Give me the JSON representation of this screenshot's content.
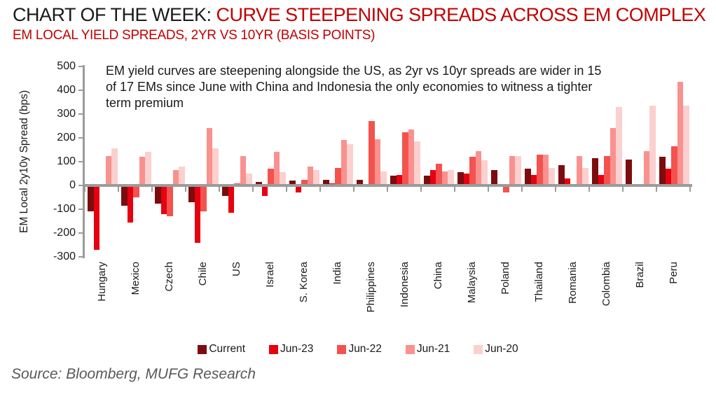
{
  "title": {
    "prefix": "CHART OF THE WEEK: ",
    "highlight": "CURVE STEEPENING SPREADS ACROSS EM COMPLEX"
  },
  "subtitle": "EM LOCAL YIELD SPREADS, 2YR VS 10YR (BASIS POINTS)",
  "annotation": {
    "text": "EM yield curves are steepening alongside the US, as 2yr vs 10yr spreads are wider in 15 of 17 EMs since June with China and Indonesia the only economies to witness a tighter term premium"
  },
  "source": "Source: Bloomberg, MUFG Research",
  "colors": {
    "title_accent": "#c00000",
    "axis": "#9b9b9b",
    "text": "#1a1a1a",
    "source_text": "#595959"
  },
  "chart_data": {
    "type": "bar",
    "title": "EM LOCAL YIELD SPREADS, 2YR VS 10YR (BASIS POINTS)",
    "xlabel": "",
    "ylabel": "EM Local 2y10y Spread (bps)",
    "ylim": [
      -300,
      500
    ],
    "ytick_interval": 100,
    "grid": false,
    "legend_position": "bottom",
    "categories": [
      "Hungary",
      "Mexico",
      "Czech",
      "Chile",
      "US",
      "Israel",
      "S. Korea",
      "India",
      "Philippines",
      "Indonesia",
      "China",
      "Malaysia",
      "Poland",
      "Thailand",
      "Romania",
      "Colombia",
      "Brazil",
      "Peru"
    ],
    "series": [
      {
        "name": "Current",
        "color": "#7c0d0e",
        "values": [
          -110,
          -85,
          -75,
          -70,
          -45,
          15,
          20,
          25,
          25,
          40,
          40,
          55,
          65,
          70,
          85,
          115,
          110,
          120
        ]
      },
      {
        "name": "Jun-23",
        "color": "#e60010",
        "values": [
          -270,
          -155,
          -120,
          -240,
          -115,
          -45,
          -30,
          10,
          0,
          45,
          65,
          50,
          0,
          45,
          30,
          45,
          5,
          70
        ]
      },
      {
        "name": "Jun-22",
        "color": "#f4524e",
        "values": [
          0,
          -50,
          -130,
          -110,
          10,
          70,
          25,
          75,
          270,
          225,
          90,
          120,
          -30,
          130,
          5,
          125,
          0,
          165
        ]
      },
      {
        "name": "Jun-21",
        "color": "#f9918e",
        "values": [
          125,
          120,
          65,
          240,
          125,
          140,
          80,
          190,
          195,
          235,
          60,
          145,
          125,
          130,
          125,
          240,
          145,
          435
        ]
      },
      {
        "name": "Jun-20",
        "color": "#fbd0ce",
        "values": [
          155,
          140,
          80,
          155,
          50,
          55,
          65,
          175,
          60,
          185,
          65,
          105,
          125,
          75,
          75,
          330,
          335,
          335
        ]
      }
    ]
  }
}
